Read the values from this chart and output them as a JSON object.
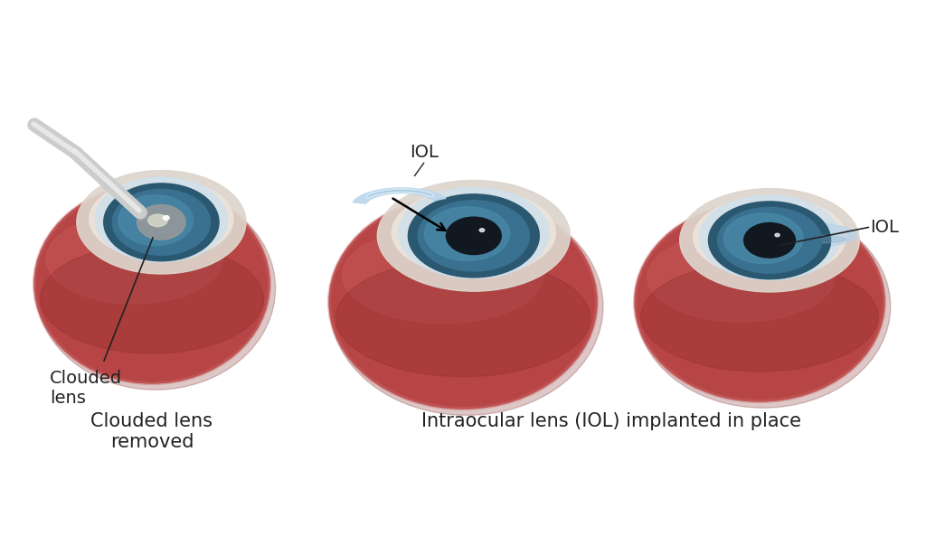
{
  "background_color": "#ffffff",
  "eye_body_color": "#b84545",
  "eye_shadow_color": "#8b2a2a",
  "eye_highlight_color": "#cc6060",
  "sclera_outer_color": "#ddd5cc",
  "sclera_inner_color": "#ece5de",
  "cornea_color": "#cde0ee",
  "cornea_light_color": "#e8f2f8",
  "iris_outer_color": "#2a5870",
  "iris_mid_color": "#3a7090",
  "iris_inner_color": "#4a8aaa",
  "pupil_color": "#111820",
  "iol_blue": "#b8d4ec",
  "iol_light": "#d8ecf8",
  "iol_dark": "#8ab0cc",
  "probe_color": "#cccccc",
  "probe_highlight": "#eeeeee",
  "probe_shadow": "#aaaaaa",
  "text_color": "#222222",
  "label_clouded": "Clouded\nlens",
  "label_removed": "Clouded lens\nremoved",
  "label_iol_1": "IOL",
  "label_iol_2": "IOL",
  "label_implanted": "Intraocular lens (IOL) implanted in place",
  "fig_w": 10.24,
  "fig_h": 6.04
}
